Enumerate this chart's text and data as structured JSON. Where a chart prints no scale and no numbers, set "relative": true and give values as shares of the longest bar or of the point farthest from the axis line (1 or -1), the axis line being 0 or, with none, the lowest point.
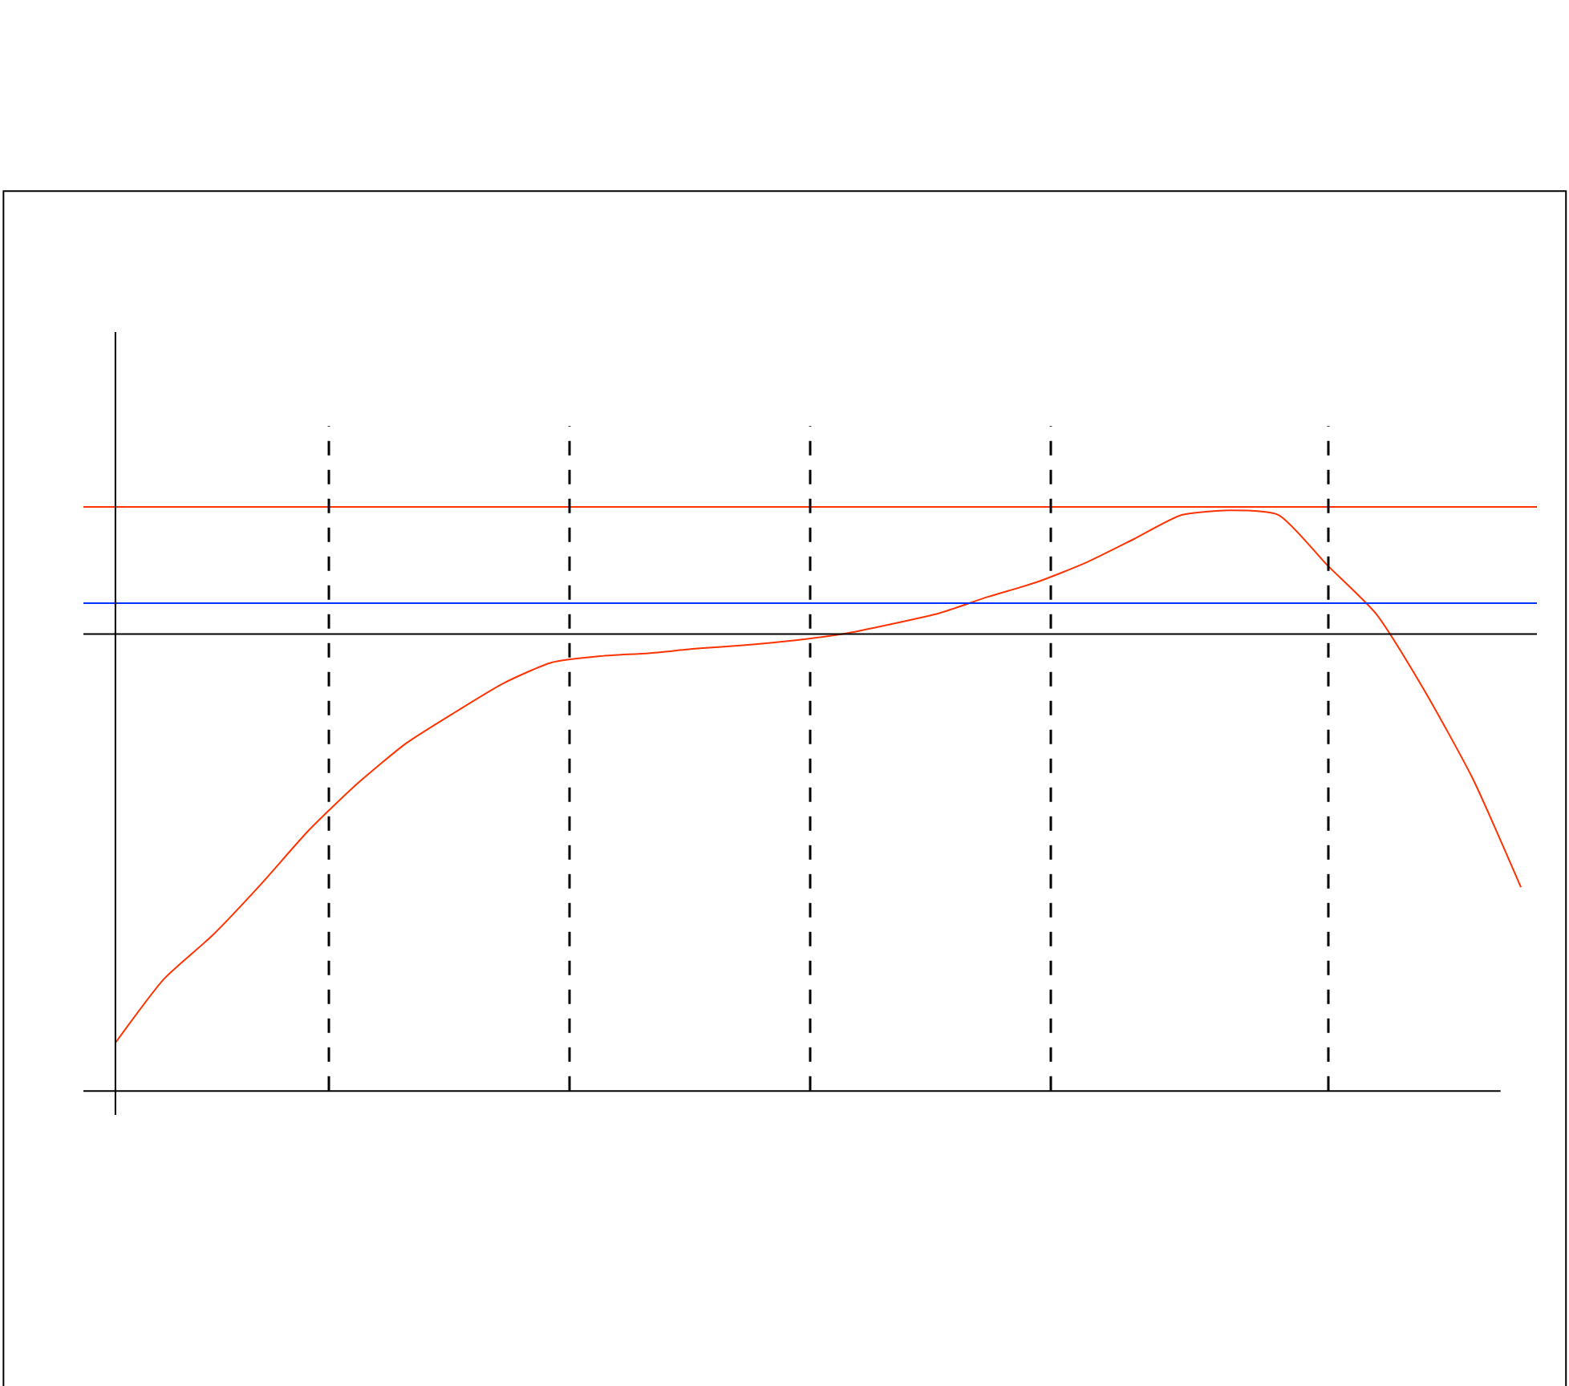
{
  "chart_data": {
    "type": "line",
    "relative": true,
    "categories": [
      null,
      null,
      null,
      null,
      null,
      null,
      null,
      null,
      null,
      null,
      null,
      null,
      null,
      null,
      null,
      null,
      null,
      null,
      null,
      null,
      null,
      null,
      null,
      null,
      null,
      null,
      null,
      null,
      null,
      null
    ],
    "series": [
      {
        "color": "#ff3300",
        "values": [
          0.083,
          0.193,
          0.268,
          0.356,
          0.45,
          0.53,
          0.599,
          0.652,
          0.702,
          0.738,
          0.749,
          0.754,
          0.762,
          0.768,
          0.776,
          0.787,
          0.804,
          0.823,
          0.851,
          0.876,
          0.909,
          0.95,
          0.992,
          1,
          0.992,
          0.906,
          0.823,
          0.691,
          0.539,
          0.351
        ]
      }
    ],
    "ref_lines": [
      {
        "axis": "y",
        "value": 1.006,
        "color": "#ff3300",
        "line_style": "solid"
      },
      {
        "axis": "y",
        "value": 0.84,
        "color": "#0033ff",
        "line_style": "solid"
      },
      {
        "axis": "y",
        "value": 0.787,
        "color": "#000000",
        "line_style": "solid"
      }
    ]
  }
}
